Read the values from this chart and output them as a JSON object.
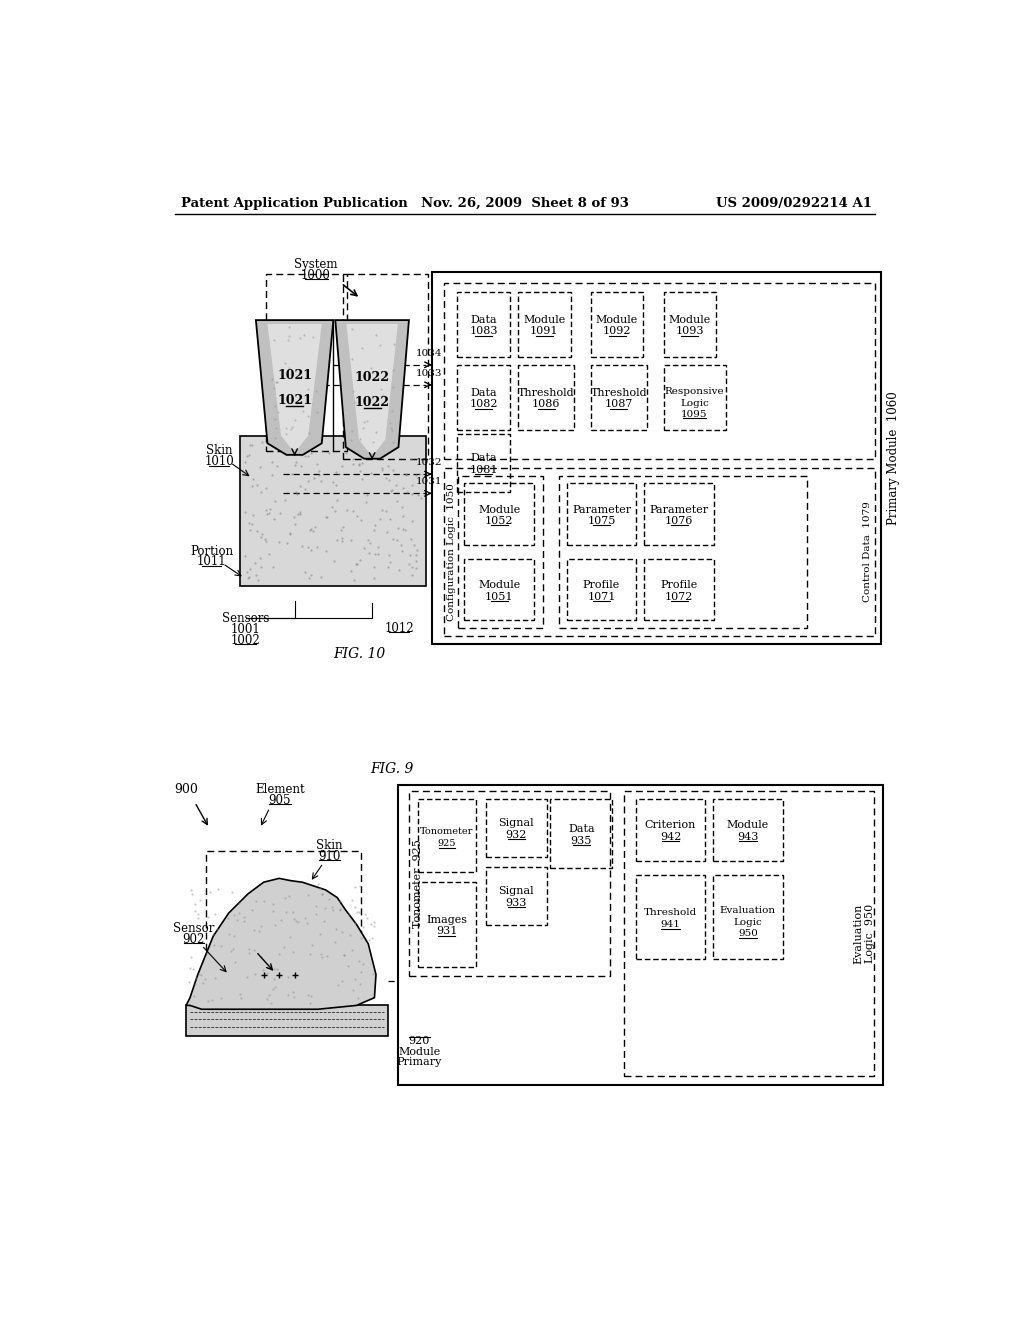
{
  "header_left": "Patent Application Publication",
  "header_mid": "Nov. 26, 2009  Sheet 8 of 93",
  "header_right": "US 2009/0292214 A1",
  "background": "#ffffff"
}
